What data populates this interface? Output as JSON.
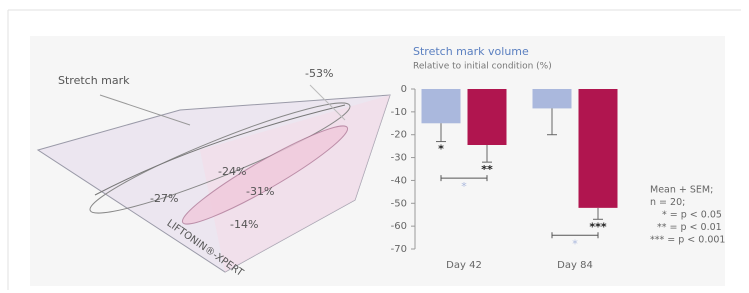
{
  "chart_data": {
    "type": "bar",
    "title": "Stretch mark volume",
    "subtitle": "Relative to initial condition (%)",
    "categories": [
      "Day 42",
      "Day 84"
    ],
    "series": [
      {
        "color": "#aab8dd",
        "values": [
          -15,
          -8.5
        ],
        "error": [
          8,
          11.5
        ],
        "significance": [
          "*",
          null
        ]
      },
      {
        "color": "#b0154f",
        "values": [
          -24.5,
          -52
        ],
        "error": [
          7.5,
          5
        ],
        "significance": [
          "**",
          "***"
        ]
      }
    ],
    "comparison_labels": [
      "*",
      "*"
    ],
    "ylim": [
      -70,
      0
    ],
    "yticks": [
      0,
      -10,
      -20,
      -30,
      -40,
      -50,
      -60,
      -70
    ],
    "grid": false,
    "note": [
      "Mean + SEM;",
      "n = 20;",
      "* = p < 0.05",
      "** = p < 0.01",
      "*** = p < 0.001"
    ]
  },
  "illustration": {
    "label": "Stretch mark",
    "brand": "LIFTONIN®-XPERT",
    "reductions": [
      "-53%",
      "-24%",
      "-31%",
      "-27%",
      "-14%"
    ]
  }
}
